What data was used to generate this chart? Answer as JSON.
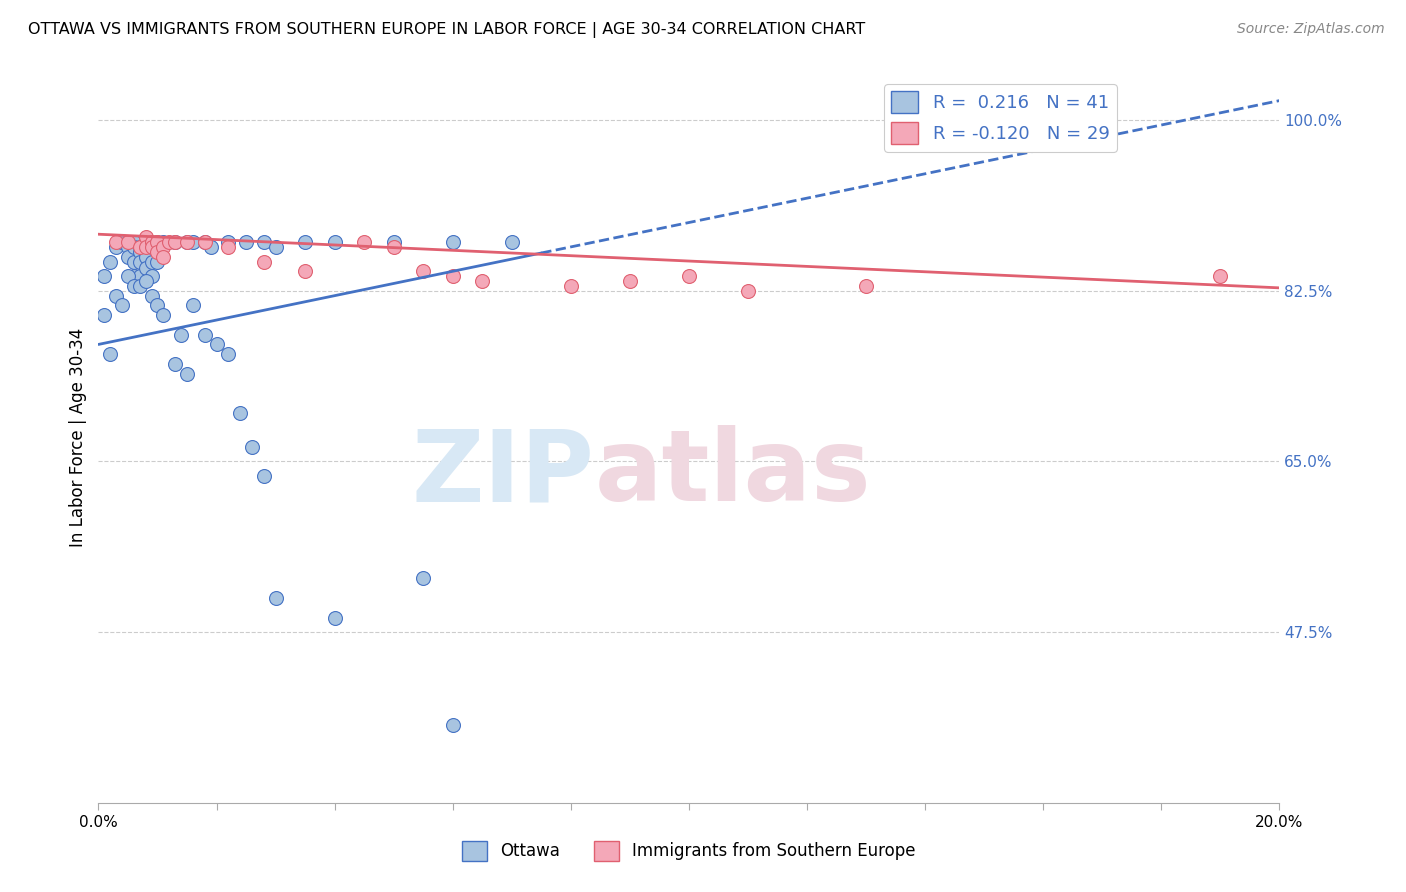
{
  "title": "OTTAWA VS IMMIGRANTS FROM SOUTHERN EUROPE IN LABOR FORCE | AGE 30-34 CORRELATION CHART",
  "source": "Source: ZipAtlas.com",
  "ylabel": "In Labor Force | Age 30-34",
  "xlim": [
    0.0,
    0.2
  ],
  "ylim": [
    0.3,
    1.05
  ],
  "xticks": [
    0.0,
    0.02,
    0.04,
    0.06,
    0.08,
    0.1,
    0.12,
    0.14,
    0.16,
    0.18,
    0.2
  ],
  "yticks_right": [
    1.0,
    0.825,
    0.65,
    0.475
  ],
  "yticklabels_right": [
    "100.0%",
    "82.5%",
    "65.0%",
    "47.5%"
  ],
  "r_ottawa": 0.216,
  "n_ottawa": 41,
  "r_immigrants": -0.12,
  "n_immigrants": 29,
  "ottawa_color": "#a8c4e0",
  "immigrants_color": "#f4a8b8",
  "trend_ottawa_color": "#4472c4",
  "trend_immigrants_color": "#e06070",
  "background_color": "#ffffff",
  "ottawa_line_y0": 0.77,
  "ottawa_line_y1": 1.02,
  "immigrants_line_y0": 0.883,
  "immigrants_line_y1": 0.828,
  "ottawa_x": [
    0.001,
    0.002,
    0.003,
    0.004,
    0.004,
    0.005,
    0.005,
    0.005,
    0.005,
    0.006,
    0.006,
    0.006,
    0.006,
    0.007,
    0.007,
    0.007,
    0.007,
    0.008,
    0.008,
    0.008,
    0.008,
    0.009,
    0.009,
    0.009,
    0.01,
    0.01,
    0.011,
    0.013,
    0.015,
    0.016,
    0.018,
    0.019,
    0.022,
    0.025,
    0.028,
    0.03,
    0.035,
    0.04,
    0.05,
    0.06,
    0.07
  ],
  "ottawa_y": [
    0.84,
    0.855,
    0.87,
    0.875,
    0.875,
    0.875,
    0.875,
    0.87,
    0.86,
    0.875,
    0.87,
    0.855,
    0.84,
    0.87,
    0.865,
    0.855,
    0.84,
    0.875,
    0.87,
    0.86,
    0.848,
    0.87,
    0.855,
    0.84,
    0.875,
    0.855,
    0.875,
    0.875,
    0.875,
    0.875,
    0.875,
    0.87,
    0.875,
    0.875,
    0.875,
    0.87,
    0.875,
    0.875,
    0.875,
    0.875,
    0.875
  ],
  "ottawa_low_x": [
    0.001,
    0.002,
    0.003,
    0.004,
    0.005,
    0.006,
    0.007,
    0.008,
    0.009,
    0.01,
    0.011,
    0.013,
    0.014,
    0.015,
    0.016,
    0.018,
    0.02,
    0.022,
    0.024,
    0.026,
    0.028,
    0.03,
    0.04,
    0.055,
    0.06
  ],
  "ottawa_low_y": [
    0.8,
    0.76,
    0.82,
    0.81,
    0.84,
    0.83,
    0.83,
    0.835,
    0.82,
    0.81,
    0.8,
    0.75,
    0.78,
    0.74,
    0.81,
    0.78,
    0.77,
    0.76,
    0.7,
    0.665,
    0.635,
    0.51,
    0.49,
    0.53,
    0.38
  ],
  "immigrants_x": [
    0.003,
    0.005,
    0.007,
    0.008,
    0.008,
    0.009,
    0.009,
    0.01,
    0.01,
    0.011,
    0.011,
    0.012,
    0.013,
    0.015,
    0.018,
    0.022,
    0.028,
    0.035,
    0.045,
    0.05,
    0.055,
    0.06,
    0.065,
    0.08,
    0.09,
    0.1,
    0.11,
    0.13,
    0.19
  ],
  "immigrants_y": [
    0.875,
    0.875,
    0.87,
    0.88,
    0.87,
    0.875,
    0.87,
    0.875,
    0.865,
    0.87,
    0.86,
    0.875,
    0.875,
    0.875,
    0.875,
    0.87,
    0.855,
    0.845,
    0.875,
    0.87,
    0.845,
    0.84,
    0.835,
    0.83,
    0.835,
    0.84,
    0.825,
    0.83,
    0.84
  ]
}
